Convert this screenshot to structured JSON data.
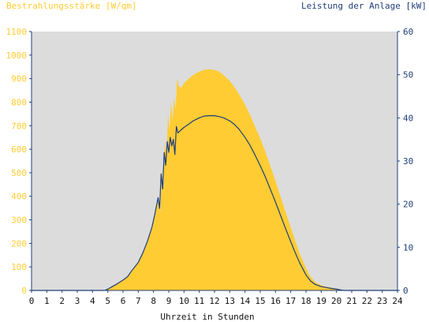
{
  "chart_data": {
    "type": "area",
    "left_axis_label": "Bestrahlungsstärke [W/qm]",
    "right_axis_label": "Leistung der Anlage [kW]",
    "xlabel": "Uhrzeit in Stunden",
    "xlim": [
      0,
      24
    ],
    "ylim_left": [
      0,
      1100
    ],
    "ylim_right": [
      0,
      60
    ],
    "x_ticks": [
      "0",
      "1",
      "2",
      "3",
      "4",
      "5",
      "6",
      "7",
      "8",
      "9",
      "10",
      "11",
      "12",
      "13",
      "14",
      "15",
      "16",
      "17",
      "18",
      "19",
      "20",
      "21",
      "22",
      "23",
      "24"
    ],
    "left_ticks": [
      "0",
      "100",
      "200",
      "300",
      "400",
      "500",
      "600",
      "700",
      "800",
      "900",
      "1000",
      "1100"
    ],
    "right_ticks": [
      "0",
      "10",
      "20",
      "30",
      "40",
      "50",
      "60"
    ],
    "colors": {
      "plot_background": "#DCDCDC",
      "irradiance_fill": "#FFCC33",
      "power_line": "#1F3E7A",
      "left_axis": "#FFCC33",
      "right_axis": "#1F3E7A"
    },
    "series": [
      {
        "axis": "left",
        "style": "area",
        "points": [
          [
            0,
            0
          ],
          [
            4.8,
            0
          ],
          [
            5.0,
            8
          ],
          [
            5.3,
            18
          ],
          [
            5.6,
            30
          ],
          [
            6.0,
            45
          ],
          [
            6.3,
            60
          ],
          [
            6.6,
            85
          ],
          [
            7.0,
            120
          ],
          [
            7.3,
            160
          ],
          [
            7.6,
            210
          ],
          [
            7.9,
            270
          ],
          [
            8.1,
            330
          ],
          [
            8.3,
            400
          ],
          [
            8.45,
            330
          ],
          [
            8.55,
            520
          ],
          [
            8.65,
            440
          ],
          [
            8.75,
            640
          ],
          [
            8.85,
            560
          ],
          [
            8.95,
            750
          ],
          [
            9.05,
            680
          ],
          [
            9.15,
            800
          ],
          [
            9.25,
            720
          ],
          [
            9.35,
            820
          ],
          [
            9.45,
            770
          ],
          [
            9.55,
            900
          ],
          [
            9.65,
            870
          ],
          [
            9.8,
            860
          ],
          [
            10.0,
            880
          ],
          [
            10.3,
            900
          ],
          [
            10.6,
            915
          ],
          [
            11.0,
            930
          ],
          [
            11.3,
            937
          ],
          [
            11.6,
            940
          ],
          [
            12.0,
            937
          ],
          [
            12.3,
            930
          ],
          [
            12.6,
            915
          ],
          [
            13.0,
            890
          ],
          [
            13.3,
            865
          ],
          [
            13.6,
            835
          ],
          [
            14.0,
            790
          ],
          [
            14.3,
            750
          ],
          [
            14.6,
            705
          ],
          [
            15.0,
            645
          ],
          [
            15.3,
            595
          ],
          [
            15.6,
            540
          ],
          [
            16.0,
            465
          ],
          [
            16.3,
            405
          ],
          [
            16.6,
            345
          ],
          [
            17.0,
            268
          ],
          [
            17.3,
            210
          ],
          [
            17.6,
            155
          ],
          [
            18.0,
            95
          ],
          [
            18.3,
            58
          ],
          [
            18.6,
            35
          ],
          [
            19.0,
            22
          ],
          [
            19.3,
            16
          ],
          [
            19.6,
            12
          ],
          [
            20.0,
            8
          ],
          [
            20.3,
            3
          ],
          [
            20.5,
            0
          ],
          [
            24,
            0
          ]
        ]
      },
      {
        "axis": "right",
        "style": "line",
        "points": [
          [
            0,
            0
          ],
          [
            4.8,
            0
          ],
          [
            5.0,
            0.3
          ],
          [
            5.3,
            0.9
          ],
          [
            5.6,
            1.5
          ],
          [
            6.0,
            2.4
          ],
          [
            6.3,
            3.2
          ],
          [
            6.6,
            4.7
          ],
          [
            7.0,
            6.5
          ],
          [
            7.3,
            8.7
          ],
          [
            7.6,
            11.4
          ],
          [
            7.9,
            14.7
          ],
          [
            8.1,
            17.9
          ],
          [
            8.3,
            21.5
          ],
          [
            8.4,
            19.0
          ],
          [
            8.5,
            27.0
          ],
          [
            8.6,
            23.5
          ],
          [
            8.7,
            32.0
          ],
          [
            8.8,
            29.0
          ],
          [
            8.9,
            34.5
          ],
          [
            9.0,
            32.0
          ],
          [
            9.1,
            35.5
          ],
          [
            9.2,
            33.5
          ],
          [
            9.3,
            35.0
          ],
          [
            9.4,
            31.5
          ],
          [
            9.5,
            38.0
          ],
          [
            9.6,
            36.5
          ],
          [
            9.8,
            37.2
          ],
          [
            10.0,
            37.8
          ],
          [
            10.3,
            38.5
          ],
          [
            10.6,
            39.3
          ],
          [
            11.0,
            40.0
          ],
          [
            11.3,
            40.4
          ],
          [
            11.6,
            40.5
          ],
          [
            12.0,
            40.5
          ],
          [
            12.3,
            40.3
          ],
          [
            12.6,
            40.0
          ],
          [
            13.0,
            39.3
          ],
          [
            13.3,
            38.5
          ],
          [
            13.6,
            37.4
          ],
          [
            14.0,
            35.5
          ],
          [
            14.3,
            33.8
          ],
          [
            14.6,
            31.8
          ],
          [
            15.0,
            28.9
          ],
          [
            15.3,
            26.6
          ],
          [
            15.6,
            24.0
          ],
          [
            16.0,
            20.5
          ],
          [
            16.3,
            17.7
          ],
          [
            16.6,
            14.9
          ],
          [
            17.0,
            11.3
          ],
          [
            17.3,
            8.7
          ],
          [
            17.6,
            6.3
          ],
          [
            18.0,
            3.6
          ],
          [
            18.3,
            2.2
          ],
          [
            18.6,
            1.4
          ],
          [
            19.0,
            0.9
          ],
          [
            19.3,
            0.7
          ],
          [
            19.6,
            0.5
          ],
          [
            20.0,
            0.3
          ],
          [
            20.3,
            0.1
          ],
          [
            20.5,
            0
          ],
          [
            24,
            0
          ]
        ]
      }
    ]
  }
}
